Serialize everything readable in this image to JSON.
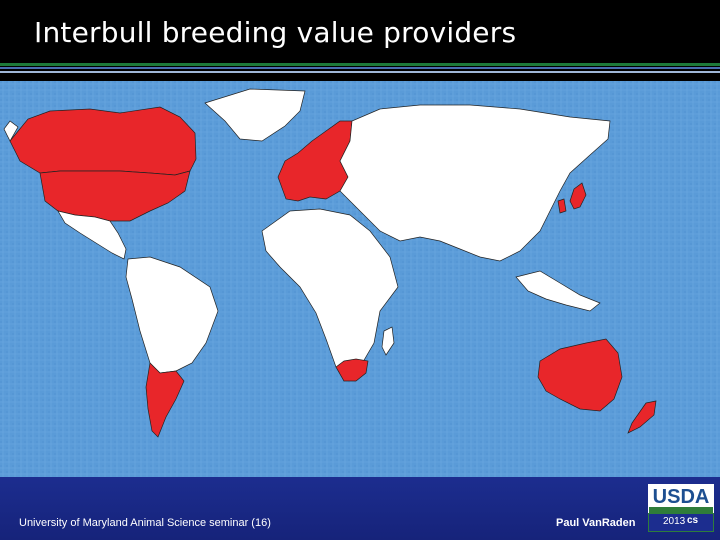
{
  "slide": {
    "title": "Interbull breeding value providers",
    "footer_left": "University of Maryland Animal Science seminar (16)",
    "footer_right": "Paul VanRaden",
    "logo_text": "USDA",
    "year": "2013",
    "agency_mark": "cs"
  },
  "map": {
    "ocean_color": "#5a9bd8",
    "provider_color": "#e8262a",
    "other_color": "#ffffff",
    "border_color": "#222222",
    "highlighted_regions": [
      "Canada",
      "United States",
      "Western Europe",
      "Scandinavia",
      "Japan",
      "South Korea",
      "Argentina",
      "Uruguay",
      "South Africa",
      "Australia",
      "New Zealand"
    ]
  }
}
